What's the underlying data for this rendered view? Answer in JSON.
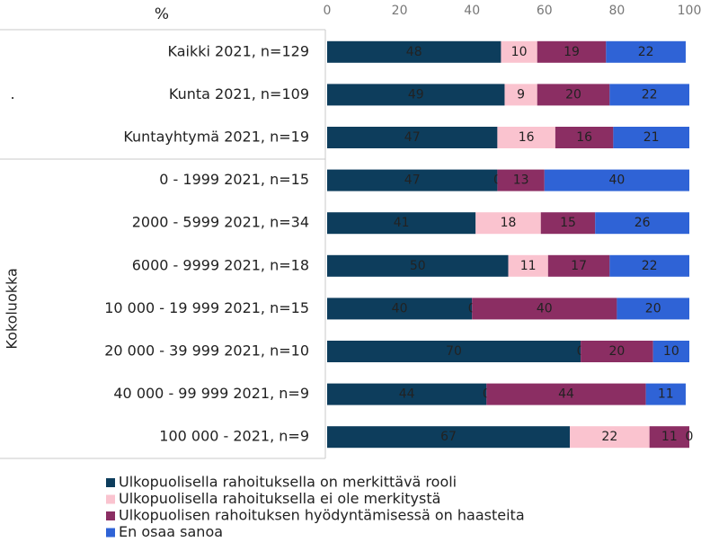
{
  "chart_data": {
    "type": "stacked-bar-horizontal",
    "xlabel": "%",
    "groups": [
      {
        "label": ".",
        "categories": [
          "Kaikki 2021, n=129",
          "Kunta 2021, n=109",
          "Kuntayhtymä 2021, n=19"
        ]
      },
      {
        "label": "Kokoluokka",
        "categories": [
          "0 - 1999 2021, n=15",
          "2000 - 5999 2021, n=34",
          "6000 - 9999 2021, n=18",
          "10 000 - 19 999 2021, n=15",
          "20 000 - 39 999 2021, n=10",
          "40 000 - 99 999 2021, n=9",
          "100 000 - 2021, n=9"
        ]
      }
    ],
    "series": [
      {
        "name": "Ulkopuolisella rahoituksella on merkittävä rooli",
        "color": "#0d3d5c",
        "label_color": "#ffffff",
        "values": [
          48,
          49,
          47,
          47,
          41,
          50,
          40,
          70,
          44,
          67
        ]
      },
      {
        "name": "Ulkopuolisella rahoituksella ei ole merkitystä",
        "color": "#fac3cf",
        "label_color": "#222222",
        "values": [
          10,
          9,
          16,
          0,
          18,
          11,
          0,
          0,
          0,
          22
        ]
      },
      {
        "name": "Ulkopuolisen rahoituksen hyödyntämisessä on haasteita",
        "color": "#8b2e63",
        "label_color": "#ffffff",
        "values": [
          19,
          20,
          16,
          13,
          15,
          17,
          40,
          20,
          44,
          11
        ]
      },
      {
        "name": "En osaa sanoa",
        "color": "#2f63d6",
        "label_color": "#ffffff",
        "values": [
          22,
          22,
          21,
          40,
          26,
          22,
          20,
          10,
          11,
          0
        ]
      }
    ],
    "xlim": [
      0,
      100
    ],
    "xticks": [
      0,
      20,
      40,
      60,
      80,
      100
    ],
    "grid": false
  }
}
